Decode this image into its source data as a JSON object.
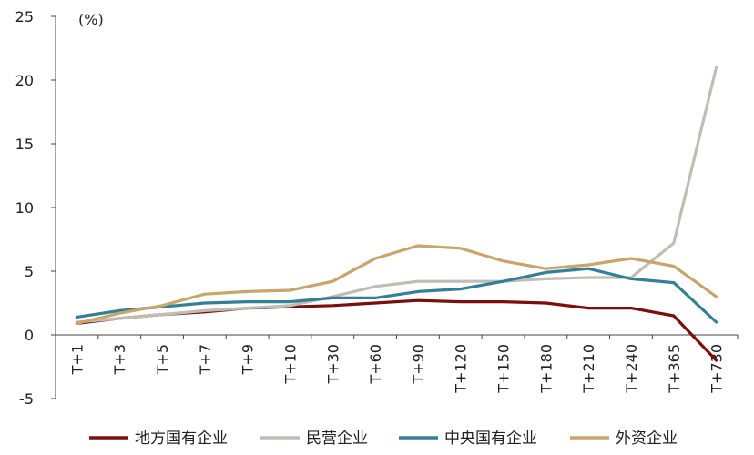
{
  "chart_data": {
    "type": "line",
    "title": "",
    "xlabel": "",
    "ylabel": "",
    "y_unit": "(%)",
    "ylim": [
      -5,
      25
    ],
    "yticks": [
      -5,
      0,
      5,
      10,
      15,
      20,
      25
    ],
    "grid": false,
    "legend_position": "bottom",
    "categories": [
      "T+1",
      "T+3",
      "T+5",
      "T+7",
      "T+9",
      "T+10",
      "T+30",
      "T+60",
      "T+90",
      "T+120",
      "T+150",
      "T+180",
      "T+210",
      "T+240",
      "T+365",
      "T+730"
    ],
    "series": [
      {
        "name": "地方国有企业",
        "color": "#7a0d0d",
        "values": [
          0.9,
          1.3,
          1.6,
          1.8,
          2.1,
          2.2,
          2.3,
          2.5,
          2.7,
          2.6,
          2.6,
          2.5,
          2.1,
          2.1,
          1.5,
          -2.0
        ]
      },
      {
        "name": "民营企业",
        "color": "#c0bdb3",
        "values": [
          1.0,
          1.3,
          1.6,
          1.9,
          2.1,
          2.3,
          3.0,
          3.8,
          4.2,
          4.2,
          4.2,
          4.4,
          4.5,
          4.5,
          7.2,
          21.0
        ]
      },
      {
        "name": "中央国有企业",
        "color": "#357f96",
        "values": [
          1.4,
          1.9,
          2.2,
          2.5,
          2.6,
          2.6,
          2.9,
          2.9,
          3.4,
          3.6,
          4.2,
          4.9,
          5.2,
          4.4,
          4.1,
          1.0
        ]
      },
      {
        "name": "外资企业",
        "color": "#c9a46b",
        "values": [
          0.9,
          1.7,
          2.3,
          3.2,
          3.4,
          3.5,
          4.2,
          6.0,
          7.0,
          6.8,
          5.8,
          5.2,
          5.5,
          6.0,
          5.4,
          3.0
        ]
      }
    ]
  }
}
